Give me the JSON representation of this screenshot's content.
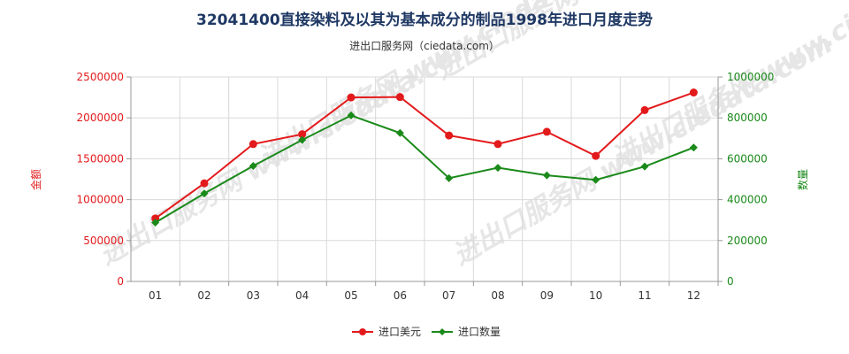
{
  "chart_data": {
    "type": "line",
    "title": "32041400直接染料及以其为基本成分的制品1998年进口月度走势",
    "subtitle": "进出口服务网（ciedata.com）",
    "watermark": "进出口服务网 www.ciedata.com",
    "categories": [
      "01",
      "02",
      "03",
      "04",
      "05",
      "06",
      "07",
      "08",
      "09",
      "10",
      "11",
      "12"
    ],
    "y_left": {
      "label": "金额",
      "min": 0,
      "max": 2500000,
      "ticks": [
        "0",
        "500000",
        "1000000",
        "1500000",
        "2000000",
        "2500000"
      ],
      "color": "#e31a1c"
    },
    "y_right": {
      "label": "数量",
      "min": 0,
      "max": 1000000,
      "ticks": [
        "0",
        "200000",
        "400000",
        "600000",
        "800000",
        "1000000"
      ],
      "color": "#1a8a1a"
    },
    "series": [
      {
        "name": "进口美元",
        "axis": "left",
        "color": "#e31a1c",
        "values": [
          770000,
          1200000,
          1680000,
          1800000,
          2250000,
          2255000,
          1785000,
          1680000,
          1830000,
          1535000,
          2095000,
          2310000
        ]
      },
      {
        "name": "进口数量",
        "axis": "right",
        "color": "#1a8a1a",
        "values": [
          288000,
          430000,
          565000,
          692000,
          812000,
          726000,
          505000,
          556000,
          519000,
          497000,
          562000,
          655000
        ]
      }
    ],
    "grid": true,
    "legend_position": "bottom"
  }
}
